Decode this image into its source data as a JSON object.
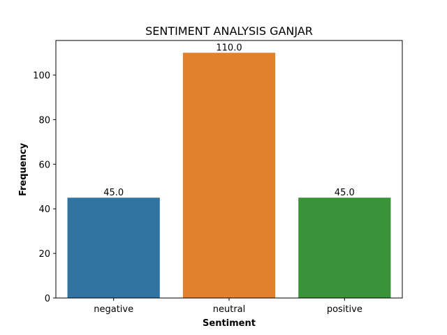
{
  "chart_data": {
    "type": "bar",
    "title": "SENTIMENT ANALYSIS GANJAR",
    "xlabel": "Sentiment",
    "ylabel": "Frequency",
    "categories": [
      "negative",
      "neutral",
      "positive"
    ],
    "values": [
      45,
      110,
      45
    ],
    "value_labels": [
      "45.0",
      "110.0",
      "45.0"
    ],
    "colors": [
      "#3274a1",
      "#e1812c",
      "#3a923a"
    ],
    "ylim": [
      0,
      115.5
    ],
    "yticks": [
      0,
      20,
      40,
      60,
      80,
      100
    ],
    "ytick_labels": [
      "0",
      "20",
      "40",
      "60",
      "80",
      "100"
    ],
    "grid": false,
    "legend": "none"
  }
}
